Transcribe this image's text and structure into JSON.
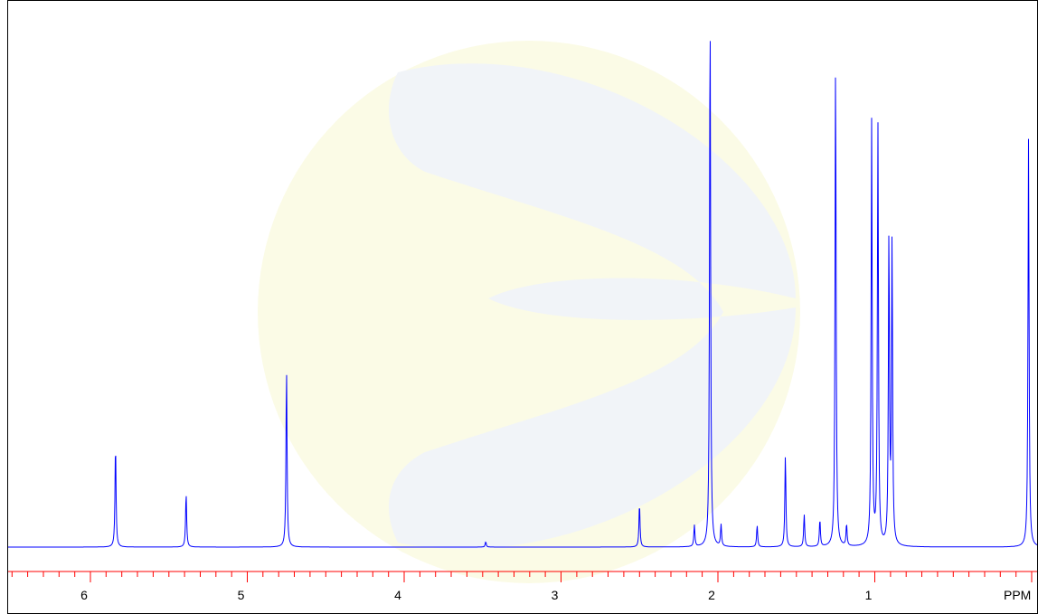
{
  "chart_data": {
    "type": "line",
    "title": "",
    "xlabel": "",
    "ylabel": "",
    "x_axis_unit_label": "PPM",
    "x_reversed": true,
    "xlim": [
      6.5,
      0.0
    ],
    "ylim": [
      0,
      100
    ],
    "grid": false,
    "x_ticks_major": [
      6,
      5,
      4,
      3,
      2,
      1
    ],
    "x_tick_labels": [
      "6",
      "5",
      "4",
      "3",
      "2",
      "1"
    ],
    "colors": {
      "spectrum": "#0000ff",
      "axis": "#ff0000",
      "tick_text": "#000000",
      "watermark": "#fbfbe6",
      "watermark_inner": "#f1f4f8"
    },
    "series": [
      {
        "values": [
          {
            "ppm": 5.84,
            "height": 19
          },
          {
            "ppm": 5.39,
            "height": 10
          },
          {
            "ppm": 4.75,
            "height": 33
          },
          {
            "ppm": 3.48,
            "height": 1
          },
          {
            "ppm": 2.5,
            "height": 8
          },
          {
            "ppm": 2.15,
            "height": 4
          },
          {
            "ppm": 2.05,
            "height": 100
          },
          {
            "ppm": 1.98,
            "height": 4
          },
          {
            "ppm": 1.75,
            "height": 4
          },
          {
            "ppm": 1.57,
            "height": 17
          },
          {
            "ppm": 1.45,
            "height": 6
          },
          {
            "ppm": 1.35,
            "height": 5
          },
          {
            "ppm": 1.25,
            "height": 90
          },
          {
            "ppm": 1.18,
            "height": 4
          },
          {
            "ppm": 1.02,
            "height": 79
          },
          {
            "ppm": 0.98,
            "height": 78
          },
          {
            "ppm": 0.91,
            "height": 57
          },
          {
            "ppm": 0.89,
            "height": 56
          },
          {
            "ppm": 0.02,
            "height": 76
          }
        ]
      }
    ]
  }
}
